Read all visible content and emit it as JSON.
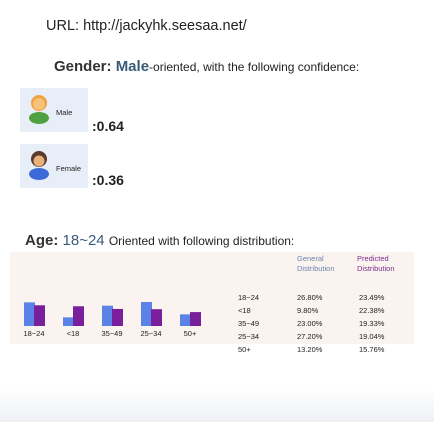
{
  "url_line": "URL: http://jackyhk.seesaa.net/",
  "gender": {
    "label": "Gender:",
    "value": "Male",
    "rest": "-oriented, with the following confidence:",
    "male": {
      "name": "Male",
      "score": ":0.64"
    },
    "female": {
      "name": "Female",
      "score": ":0.36"
    }
  },
  "age": {
    "label": "Age:",
    "value": "18~24",
    "rest": "Oriented with following distribution:",
    "table": {
      "header_general_1": "General",
      "header_general_2": "Distribution",
      "header_predicted_1": "Predicted",
      "header_predicted_2": "Distribution",
      "rows": [
        {
          "age": "18~24",
          "general": "26.80%",
          "predicted": "23.49%"
        },
        {
          "age": "<18",
          "general": "9.80%",
          "predicted": "22.38%"
        },
        {
          "age": "35~49",
          "general": "23.00%",
          "predicted": "19.33%"
        },
        {
          "age": "25~34",
          "general": "27.20%",
          "predicted": "19.04%"
        },
        {
          "age": "50+",
          "general": "13.20%",
          "predicted": "15.76%"
        }
      ]
    }
  },
  "colors": {
    "general_bar": "#5b82e6",
    "predicted_bar": "#7a1f9c",
    "male_icon": "#f0a03c",
    "female_icon": "#5a3a2a",
    "shirt_male": "#4fa040",
    "shirt_female": "#3c6ad8"
  },
  "chart_data": {
    "type": "bar",
    "categories": [
      "18~24",
      "<18",
      "35~49",
      "25~34",
      "50+"
    ],
    "series": [
      {
        "name": "General Distribution",
        "values": [
          26.8,
          9.8,
          23.0,
          27.2,
          13.2
        ]
      },
      {
        "name": "Predicted Distribution",
        "values": [
          23.49,
          22.38,
          19.33,
          19.04,
          15.76
        ]
      }
    ],
    "title": "",
    "xlabel": "",
    "ylabel": "",
    "ylim": [
      0,
      27.2
    ]
  }
}
